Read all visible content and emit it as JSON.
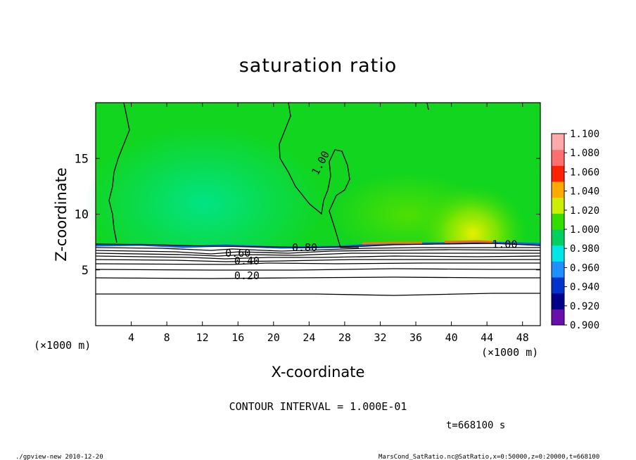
{
  "chart_data": {
    "type": "heatmap",
    "title": "saturation ratio",
    "xlabel": "X-coordinate",
    "ylabel": "Z-coordinate",
    "x_unit_left": "(×1000 m)",
    "x_unit_right": "(×1000 m)",
    "xlim": [
      0,
      50
    ],
    "ylim": [
      0,
      20
    ],
    "x_ticks": [
      4,
      8,
      12,
      16,
      20,
      24,
      28,
      32,
      36,
      40,
      44,
      48
    ],
    "x_tick_labels": [
      "4",
      "8",
      "12",
      "16",
      "20",
      "24",
      "28",
      "32",
      "36",
      "40",
      "44",
      "48"
    ],
    "y_ticks": [
      5,
      10,
      15
    ],
    "y_tick_labels": [
      "5",
      "10",
      "15"
    ],
    "colorbar": {
      "levels": [
        "0.900",
        "0.920",
        "0.940",
        "0.960",
        "0.980",
        "1.000",
        "1.020",
        "1.040",
        "1.060",
        "1.080",
        "1.100"
      ],
      "colors": [
        "#6a0dad",
        "#00008b",
        "#0033cc",
        "#1e90ff",
        "#00e5e5",
        "#00d060",
        "#33dd00",
        "#ccee00",
        "#ffaa00",
        "#ff2200",
        "#ff6f6f",
        "#ffaaaa"
      ]
    },
    "contour_labels": [
      {
        "text": "1.00",
        "x": 25.5,
        "y": 14.5
      },
      {
        "text": "1.00",
        "x": 46.0,
        "y": 7.1
      },
      {
        "text": "0.80",
        "x": 23.5,
        "y": 6.8
      },
      {
        "text": "0.60",
        "x": 16.0,
        "y": 6.3
      },
      {
        "text": "0.40",
        "x": 17.0,
        "y": 5.6
      },
      {
        "text": "0.20",
        "x": 17.0,
        "y": 4.3
      }
    ],
    "contour_interval_text": "CONTOUR INTERVAL = 1.000E-01",
    "time_text": "t=668100 s",
    "grid": false
  },
  "footer": {
    "left": "./gpview-new   2010-12-20",
    "right": "MarsCond_SatRatio.nc@SatRatio,x=0:50000,z=0:20000,t=668100"
  }
}
